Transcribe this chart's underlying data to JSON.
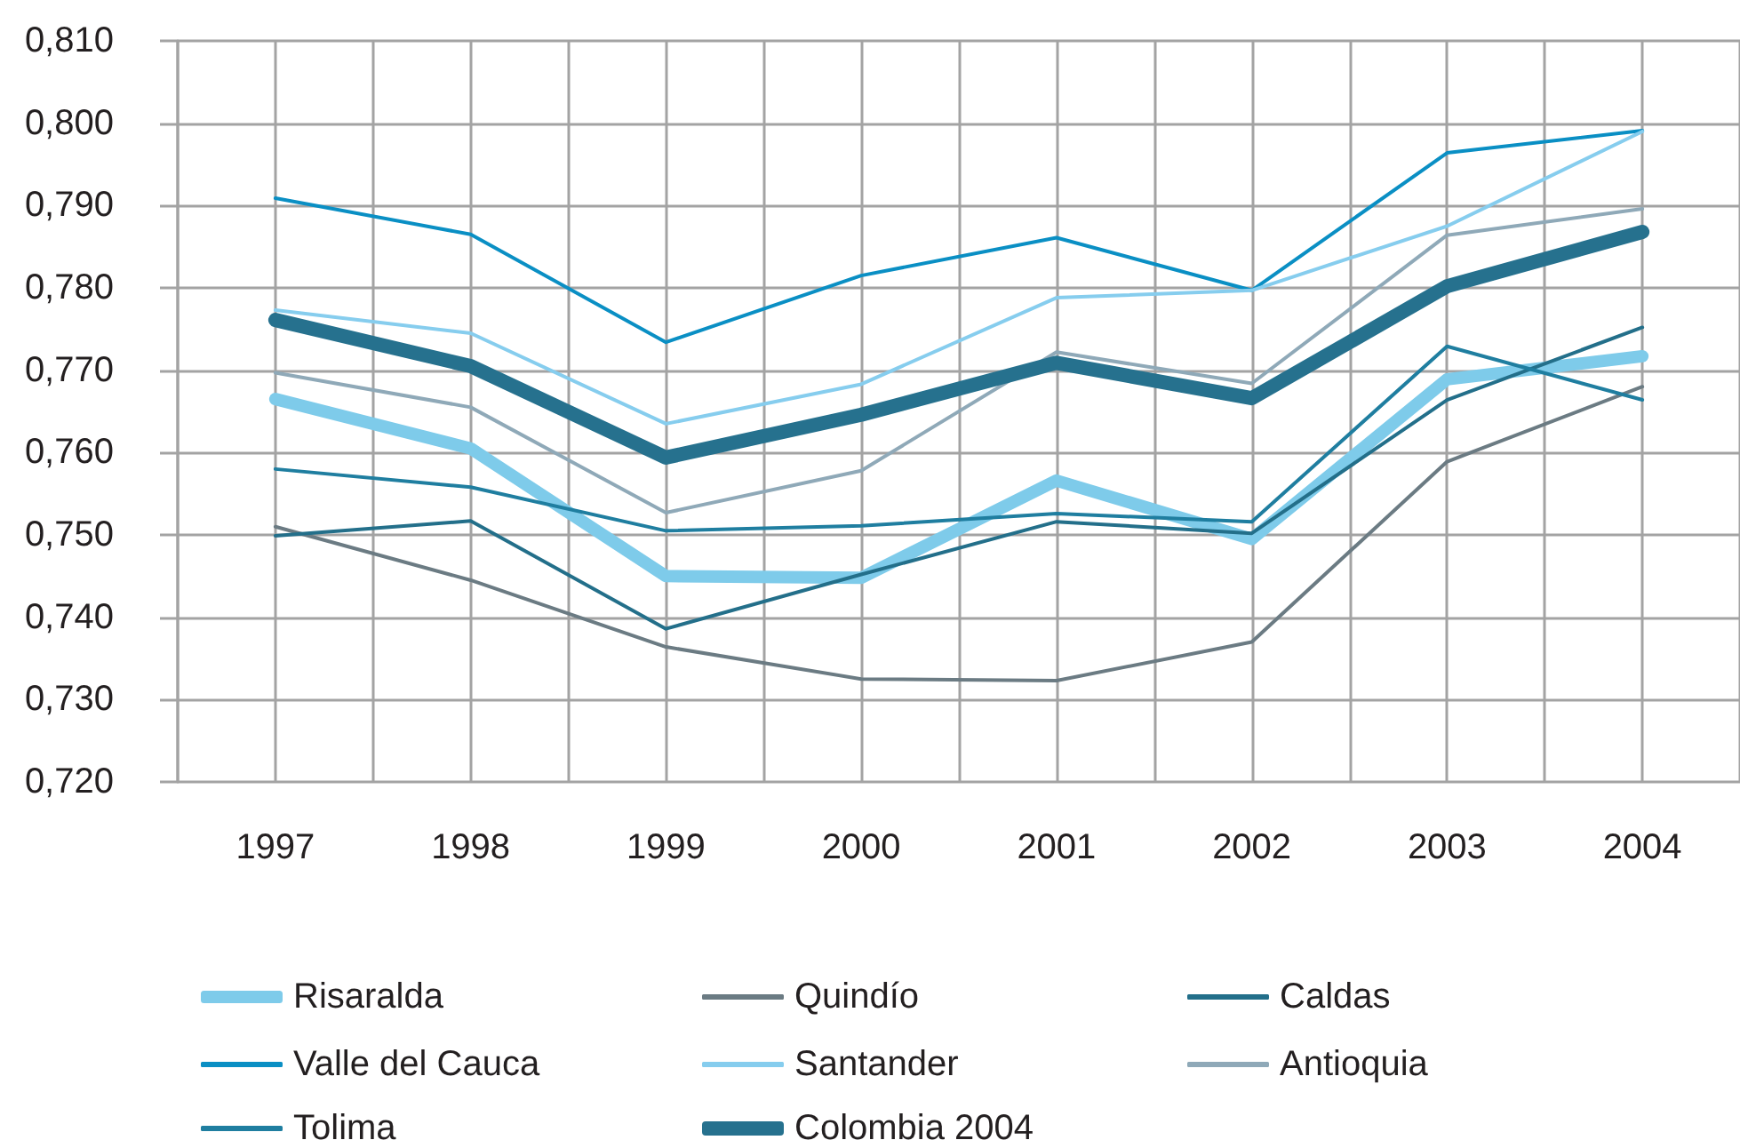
{
  "chart_data": {
    "type": "line",
    "categories": [
      "1997",
      "1998",
      "1999",
      "2000",
      "2001",
      "2002",
      "2003",
      "2004"
    ],
    "series": [
      {
        "name": "Risaralda",
        "color": "#7ecbea",
        "values": [
          0.7665,
          0.7605,
          0.745,
          0.7448,
          0.7566,
          0.7495,
          0.7689,
          0.7717
        ]
      },
      {
        "name": "Quindío",
        "color": "#6b7b83",
        "values": [
          0.751,
          0.7445,
          0.7364,
          0.7325,
          0.7323,
          0.737,
          0.7589,
          0.768
        ]
      },
      {
        "name": "Caldas",
        "color": "#236f8a",
        "values": [
          0.7499,
          0.7517,
          0.7386,
          0.7452,
          0.7516,
          0.7502,
          0.7664,
          0.7752
        ]
      },
      {
        "name": "Valle del Cauca",
        "color": "#0a8fc4",
        "values": [
          0.7909,
          0.7865,
          0.7734,
          0.7815,
          0.7861,
          0.7797,
          0.7964,
          0.7991
        ]
      },
      {
        "name": "Santander",
        "color": "#86cdee",
        "values": [
          0.7773,
          0.7745,
          0.7635,
          0.7683,
          0.7788,
          0.7797,
          0.7875,
          0.799
        ]
      },
      {
        "name": "Antioquia",
        "color": "#8fa9b8",
        "values": [
          0.7697,
          0.7655,
          0.7527,
          0.7578,
          0.7722,
          0.7684,
          0.7864,
          0.7896
        ]
      },
      {
        "name": "Tolima",
        "color": "#1f7ea0",
        "values": [
          0.758,
          0.7558,
          0.7505,
          0.7511,
          0.7526,
          0.7516,
          0.7729,
          0.7664
        ]
      },
      {
        "name": "Colombia 2004",
        "color": "#26718e",
        "values": [
          0.7761,
          0.7705,
          0.7594,
          0.7646,
          0.7709,
          0.7666,
          0.7802,
          0.7868
        ]
      }
    ],
    "ylim": [
      0.72,
      0.81
    ],
    "yticks": [
      {
        "value": 0.72,
        "label": "0,720"
      },
      {
        "value": 0.73,
        "label": "0,730"
      },
      {
        "value": 0.74,
        "label": "0,740"
      },
      {
        "value": 0.75,
        "label": "0,750"
      },
      {
        "value": 0.76,
        "label": "0,760"
      },
      {
        "value": 0.77,
        "label": "0,770"
      },
      {
        "value": 0.78,
        "label": "0,780"
      },
      {
        "value": 0.79,
        "label": "0,790"
      },
      {
        "value": 0.8,
        "label": "0,800"
      },
      {
        "value": 0.81,
        "label": "0,810"
      }
    ],
    "grid": true,
    "legend": "bottom",
    "marker": "none",
    "line_style": "solid"
  }
}
